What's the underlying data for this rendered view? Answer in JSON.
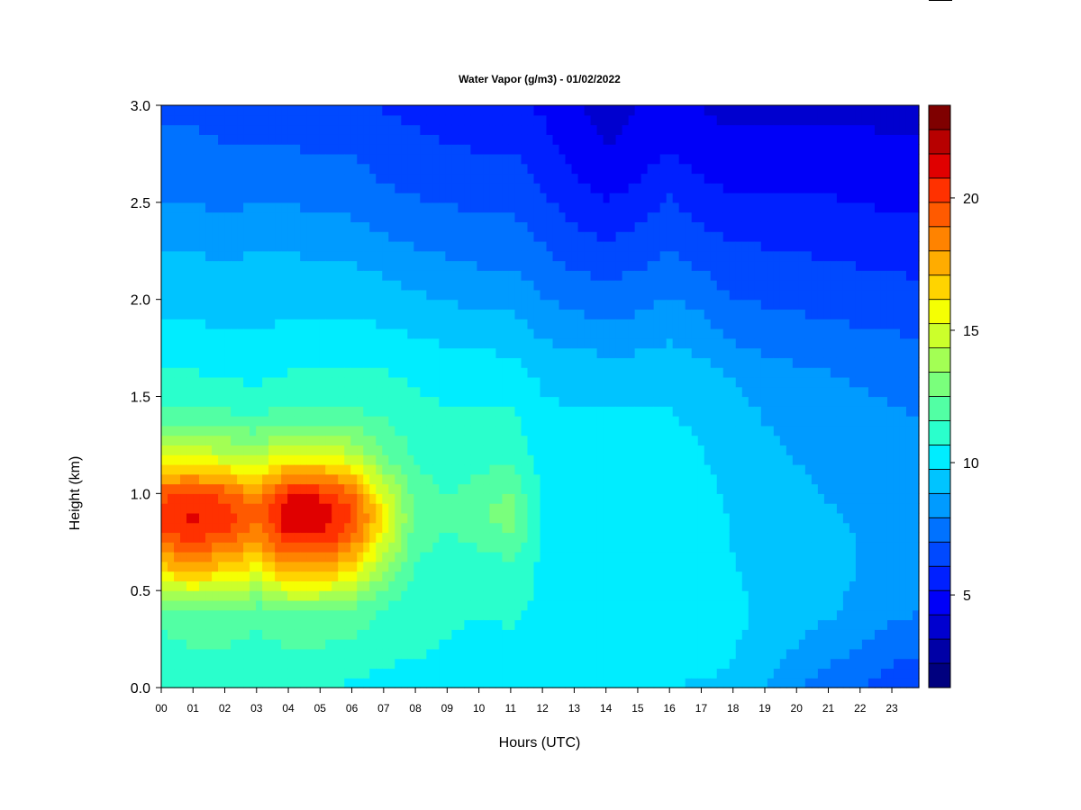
{
  "chart_data": {
    "type": "heatmap",
    "title": "Water Vapor (g/m3) - 01/02/2022",
    "xlabel": "Hours (UTC)",
    "ylabel": "Height (km)",
    "x_range": [
      0,
      23.85
    ],
    "y_range": [
      0,
      3.0
    ],
    "x_ticks": [
      "00",
      "01",
      "02",
      "03",
      "04",
      "05",
      "06",
      "07",
      "08",
      "09",
      "10",
      "11",
      "12",
      "13",
      "14",
      "15",
      "16",
      "17",
      "18",
      "19",
      "20",
      "21",
      "22",
      "23"
    ],
    "y_ticks": [
      "0.0",
      "0.5",
      "1.0",
      "1.5",
      "2.0",
      "2.5",
      "3.0"
    ],
    "colorbar": {
      "range": [
        1.5,
        23.5
      ],
      "ticks": [
        "5",
        "10",
        "15",
        "20"
      ],
      "levels": 22,
      "colors": [
        "#00007f",
        "#0000a6",
        "#0000cf",
        "#0000f8",
        "#0020ff",
        "#0049ff",
        "#0072ff",
        "#009bff",
        "#00c4ff",
        "#00edff",
        "#2affcc",
        "#52ffa4",
        "#7aff7c",
        "#a3ff54",
        "#ccff2b",
        "#f5ff03",
        "#ffd400",
        "#ffac00",
        "#ff8300",
        "#ff5a00",
        "#ff3100",
        "#e00000",
        "#b70000",
        "#7f0000"
      ]
    },
    "profile_heights_km": [
      0.0,
      0.2,
      0.4,
      0.6,
      0.8,
      0.9,
      1.0,
      1.2,
      1.4,
      1.6,
      1.8,
      2.0,
      2.2,
      2.4,
      2.6,
      2.8,
      3.0
    ],
    "profiles": [
      {
        "hour": 0.0,
        "values": [
          11.0,
          11.2,
          12.0,
          16.5,
          20.0,
          20.5,
          19.5,
          15.0,
          12.0,
          10.8,
          10.0,
          9.5,
          9.0,
          8.2,
          7.6,
          7.2,
          6.8
        ]
      },
      {
        "hour": 1.0,
        "values": [
          11.0,
          11.5,
          12.5,
          17.0,
          20.5,
          21.0,
          20.0,
          15.0,
          12.0,
          10.8,
          10.0,
          9.5,
          9.0,
          8.2,
          7.6,
          7.2,
          6.8
        ]
      },
      {
        "hour": 2.0,
        "values": [
          11.0,
          11.5,
          12.5,
          16.5,
          20.0,
          20.5,
          19.5,
          14.5,
          11.8,
          10.6,
          9.8,
          9.4,
          8.8,
          8.0,
          7.5,
          7.0,
          6.6
        ]
      },
      {
        "hour": 3.0,
        "values": [
          11.0,
          11.2,
          12.0,
          15.5,
          18.5,
          19.0,
          18.0,
          14.0,
          11.5,
          10.5,
          9.8,
          9.5,
          9.0,
          8.2,
          7.6,
          7.0,
          6.5
        ]
      },
      {
        "hour": 4.0,
        "values": [
          11.0,
          11.5,
          12.5,
          17.5,
          21.0,
          21.5,
          20.5,
          15.5,
          12.0,
          10.8,
          10.0,
          9.5,
          9.0,
          8.3,
          7.6,
          7.0,
          6.5
        ]
      },
      {
        "hour": 5.0,
        "values": [
          10.8,
          11.5,
          12.5,
          17.5,
          21.0,
          21.5,
          20.5,
          15.5,
          12.0,
          10.8,
          10.0,
          9.5,
          8.8,
          8.0,
          7.4,
          6.8,
          6.3
        ]
      },
      {
        "hour": 6.0,
        "values": [
          10.5,
          11.3,
          12.2,
          16.0,
          19.5,
          20.0,
          19.0,
          14.5,
          11.8,
          10.8,
          10.0,
          9.5,
          8.8,
          8.0,
          7.4,
          6.8,
          6.3
        ]
      },
      {
        "hour": 7.0,
        "values": [
          10.3,
          11.0,
          11.5,
          13.5,
          15.5,
          16.0,
          15.0,
          12.5,
          11.5,
          10.8,
          10.0,
          9.3,
          8.5,
          7.6,
          7.0,
          6.5,
          6.0
        ]
      },
      {
        "hour": 8.0,
        "values": [
          10.2,
          10.8,
          11.0,
          11.5,
          12.0,
          12.2,
          12.0,
          11.5,
          11.0,
          10.5,
          9.8,
          9.0,
          8.2,
          7.4,
          6.8,
          6.3,
          5.8
        ]
      },
      {
        "hour": 9.0,
        "values": [
          10.0,
          10.6,
          10.8,
          11.0,
          11.5,
          11.8,
          11.5,
          11.0,
          10.8,
          10.3,
          9.6,
          8.8,
          8.0,
          7.3,
          6.6,
          6.1,
          5.7
        ]
      },
      {
        "hour": 10.0,
        "values": [
          10.0,
          10.5,
          10.7,
          11.0,
          12.0,
          12.5,
          12.0,
          11.2,
          10.8,
          10.3,
          9.5,
          8.6,
          7.8,
          7.2,
          6.5,
          6.0,
          5.6
        ]
      },
      {
        "hour": 11.0,
        "values": [
          10.0,
          10.5,
          10.8,
          11.2,
          12.5,
          13.0,
          12.5,
          11.3,
          10.8,
          10.2,
          9.4,
          8.6,
          7.8,
          7.2,
          6.6,
          6.0,
          5.5
        ]
      },
      {
        "hour": 12.0,
        "values": [
          10.0,
          10.6,
          10.5,
          10.5,
          10.6,
          10.6,
          10.5,
          10.3,
          10.0,
          9.6,
          8.8,
          8.0,
          7.3,
          6.6,
          6.0,
          5.5,
          5.0
        ]
      },
      {
        "hour": 13.0,
        "values": [
          9.9,
          10.6,
          10.3,
          10.2,
          10.3,
          10.3,
          10.2,
          10.0,
          9.8,
          9.5,
          8.6,
          7.6,
          6.8,
          6.0,
          5.3,
          4.8,
          4.4
        ]
      },
      {
        "hour": 14.0,
        "values": [
          9.8,
          10.6,
          10.2,
          10.1,
          10.2,
          10.2,
          10.1,
          10.0,
          9.8,
          9.4,
          8.4,
          7.4,
          6.6,
          5.6,
          4.8,
          4.2,
          3.8
        ]
      },
      {
        "hour": 15.0,
        "values": [
          9.7,
          10.5,
          10.2,
          10.1,
          10.2,
          10.2,
          10.1,
          10.0,
          9.8,
          9.4,
          8.5,
          7.6,
          6.8,
          6.0,
          5.2,
          4.6,
          4.2
        ]
      },
      {
        "hour": 16.0,
        "values": [
          9.7,
          10.5,
          10.3,
          10.2,
          10.3,
          10.3,
          10.2,
          10.0,
          9.8,
          9.5,
          8.8,
          8.0,
          7.2,
          6.6,
          5.8,
          5.0,
          4.5
        ]
      },
      {
        "hour": 17.0,
        "values": [
          9.6,
          10.3,
          10.2,
          10.0,
          10.0,
          10.0,
          10.0,
          9.8,
          9.6,
          9.2,
          8.5,
          7.6,
          6.8,
          6.0,
          5.3,
          4.6,
          4.2
        ]
      },
      {
        "hour": 18.0,
        "values": [
          9.5,
          9.8,
          10.0,
          9.8,
          9.7,
          9.7,
          9.6,
          9.4,
          9.2,
          8.8,
          7.8,
          7.0,
          6.4,
          5.8,
          5.0,
          4.4,
          4.0
        ]
      },
      {
        "hour": 19.0,
        "values": [
          8.8,
          9.3,
          9.6,
          9.5,
          9.4,
          9.3,
          9.2,
          9.0,
          8.8,
          8.4,
          7.6,
          6.9,
          6.3,
          5.7,
          5.0,
          4.5,
          4.1
        ]
      },
      {
        "hour": 20.0,
        "values": [
          8.0,
          8.8,
          9.3,
          9.3,
          9.2,
          9.1,
          9.0,
          8.8,
          8.6,
          8.2,
          7.4,
          6.8,
          6.2,
          5.6,
          5.0,
          4.5,
          4.1
        ]
      },
      {
        "hour": 21.0,
        "values": [
          7.5,
          8.3,
          9.0,
          9.1,
          9.0,
          8.9,
          8.8,
          8.6,
          8.4,
          8.0,
          7.3,
          6.7,
          6.1,
          5.5,
          5.0,
          4.5,
          4.1
        ]
      },
      {
        "hour": 22.0,
        "values": [
          7.0,
          7.8,
          8.6,
          8.8,
          8.8,
          8.7,
          8.6,
          8.4,
          8.2,
          7.8,
          7.2,
          6.6,
          6.0,
          5.4,
          4.9,
          4.4,
          4.1
        ]
      },
      {
        "hour": 23.0,
        "values": [
          6.5,
          7.3,
          8.2,
          8.6,
          8.6,
          8.5,
          8.4,
          8.2,
          8.0,
          7.7,
          7.1,
          6.5,
          5.9,
          5.3,
          4.8,
          4.3,
          4.0
        ]
      },
      {
        "hour": 23.85,
        "values": [
          6.3,
          7.1,
          8.0,
          8.5,
          8.5,
          8.4,
          8.3,
          8.1,
          7.9,
          7.6,
          7.0,
          6.4,
          5.8,
          5.3,
          4.8,
          4.3,
          4.0
        ]
      }
    ]
  }
}
